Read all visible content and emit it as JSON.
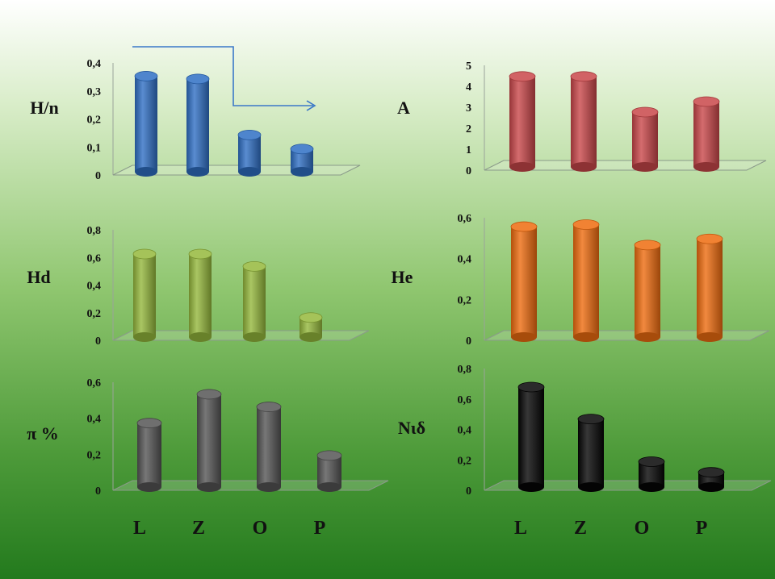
{
  "categories_row": [
    "L",
    "Z",
    "O",
    "P"
  ],
  "chart_data": [
    {
      "type": "bar",
      "label": "H/n",
      "categories": [
        "L",
        "Z",
        "O",
        "P"
      ],
      "values": [
        0.37,
        0.36,
        0.16,
        0.11
      ],
      "yticks": [
        "0",
        "0,1",
        "0,2",
        "0,3",
        "0,4"
      ],
      "ylim": [
        0,
        0.4
      ],
      "color": "#2f6fc4",
      "annotation": "arrow"
    },
    {
      "type": "bar",
      "label": "A",
      "categories": [
        "L",
        "Z",
        "O",
        "P"
      ],
      "values": [
        4.7,
        4.7,
        3.0,
        3.5
      ],
      "yticks": [
        "0",
        "1",
        "2",
        "3",
        "4",
        "5"
      ],
      "ylim": [
        0,
        5
      ],
      "color": "#c9474a"
    },
    {
      "type": "bar",
      "label": "Hd",
      "categories": [
        "L",
        "Z",
        "O",
        "P"
      ],
      "values": [
        0.66,
        0.66,
        0.57,
        0.2
      ],
      "yticks": [
        "0",
        "0,2",
        "0,4",
        "0,6",
        "0,8"
      ],
      "ylim": [
        0,
        0.8
      ],
      "color": "#95b83c"
    },
    {
      "type": "bar",
      "label": "He",
      "categories": [
        "L",
        "Z",
        "O",
        "P"
      ],
      "values": [
        0.58,
        0.59,
        0.49,
        0.52
      ],
      "yticks": [
        "0",
        "0,2",
        "0,4",
        "0,6"
      ],
      "ylim": [
        0,
        0.6
      ],
      "color": "#ee6c0f"
    },
    {
      "type": "bar",
      "label": "π %",
      "categories": [
        "L",
        "Z",
        "O",
        "P"
      ],
      "values": [
        0.4,
        0.56,
        0.49,
        0.22
      ],
      "yticks": [
        "0",
        "0,2",
        "0,4",
        "0,6"
      ],
      "ylim": [
        0,
        0.6
      ],
      "color": "#555555"
    },
    {
      "type": "bar",
      "label": "Nιδ",
      "categories": [
        "L",
        "Z",
        "O",
        "P"
      ],
      "values": [
        0.71,
        0.5,
        0.22,
        0.15
      ],
      "yticks": [
        "0",
        "0,2",
        "0,4",
        "0,6",
        "0,8"
      ],
      "ylim": [
        0,
        0.8
      ],
      "color": "#050505"
    }
  ]
}
